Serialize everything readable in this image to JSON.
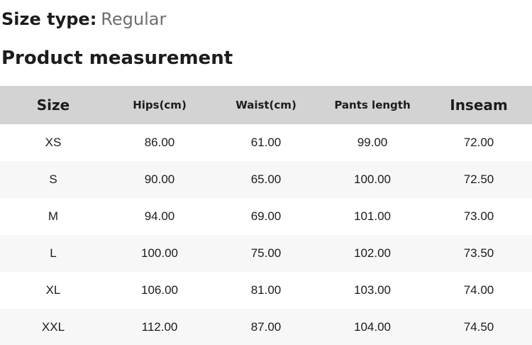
{
  "header": {
    "size_type_label": "Size type:",
    "size_type_value": "Regular",
    "section_title": "Product measurement"
  },
  "table": {
    "columns": [
      "Size",
      "Hips(cm)",
      "Waist(cm)",
      "Pants length",
      "Inseam"
    ],
    "rows": [
      [
        "XS",
        "86.00",
        "61.00",
        "99.00",
        "72.00"
      ],
      [
        "S",
        "90.00",
        "65.00",
        "100.00",
        "72.50"
      ],
      [
        "M",
        "94.00",
        "69.00",
        "101.00",
        "73.00"
      ],
      [
        "L",
        "100.00",
        "75.00",
        "102.00",
        "73.50"
      ],
      [
        "XL",
        "106.00",
        "81.00",
        "103.00",
        "74.00"
      ],
      [
        "XXL",
        "112.00",
        "87.00",
        "104.00",
        "74.50"
      ]
    ]
  },
  "colors": {
    "header_row_bg": "#d3d3d3",
    "alt_row_bg": "#f7f7f7",
    "text": "#1c1c1c",
    "muted_text": "#6d6d6d"
  }
}
